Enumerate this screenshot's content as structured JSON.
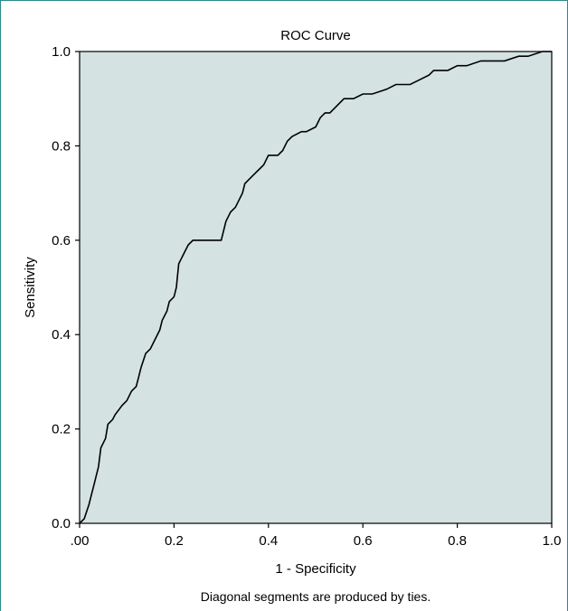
{
  "colors": {
    "plot_background": "#d4e2e2",
    "curve": "#000000",
    "frame": "#2a8a8a"
  },
  "chart_data": {
    "type": "line",
    "title": "ROC Curve",
    "xlabel": "1 - Specificity",
    "ylabel": "Sensitivity",
    "xlim": [
      0,
      1
    ],
    "ylim": [
      0,
      1
    ],
    "x_tick_labels": [
      ".00",
      "0.2",
      "0.4",
      "0.6",
      "0.8",
      "1.0"
    ],
    "y_tick_labels": [
      "0.0",
      "0.2",
      "0.4",
      "0.6",
      "0.8",
      "1.0"
    ],
    "grid": false,
    "legend": null,
    "footnote": "Diagonal segments are produced by ties.",
    "series": [
      {
        "x": [
          0.0,
          0.01,
          0.02,
          0.025,
          0.03,
          0.035,
          0.04,
          0.045,
          0.05,
          0.055,
          0.06,
          0.07,
          0.075,
          0.09,
          0.1,
          0.11,
          0.12,
          0.125,
          0.13,
          0.14,
          0.15,
          0.155,
          0.16,
          0.17,
          0.175,
          0.185,
          0.19,
          0.2,
          0.205,
          0.21,
          0.215,
          0.22,
          0.23,
          0.24,
          0.25,
          0.3,
          0.305,
          0.31,
          0.315,
          0.32,
          0.33,
          0.34,
          0.345,
          0.35,
          0.36,
          0.37,
          0.38,
          0.39,
          0.4,
          0.42,
          0.43,
          0.44,
          0.45,
          0.47,
          0.48,
          0.5,
          0.51,
          0.52,
          0.53,
          0.55,
          0.56,
          0.58,
          0.6,
          0.62,
          0.65,
          0.67,
          0.7,
          0.72,
          0.74,
          0.75,
          0.77,
          0.78,
          0.8,
          0.82,
          0.85,
          0.9,
          0.93,
          0.95,
          0.98,
          1.0
        ],
        "y": [
          0.0,
          0.01,
          0.04,
          0.06,
          0.08,
          0.1,
          0.12,
          0.16,
          0.17,
          0.18,
          0.21,
          0.22,
          0.23,
          0.25,
          0.26,
          0.28,
          0.29,
          0.31,
          0.33,
          0.36,
          0.37,
          0.38,
          0.39,
          0.41,
          0.43,
          0.45,
          0.47,
          0.48,
          0.5,
          0.55,
          0.56,
          0.57,
          0.59,
          0.6,
          0.6,
          0.6,
          0.62,
          0.64,
          0.65,
          0.66,
          0.67,
          0.69,
          0.7,
          0.72,
          0.73,
          0.74,
          0.75,
          0.76,
          0.78,
          0.78,
          0.79,
          0.81,
          0.82,
          0.83,
          0.83,
          0.84,
          0.86,
          0.87,
          0.87,
          0.89,
          0.9,
          0.9,
          0.91,
          0.91,
          0.92,
          0.93,
          0.93,
          0.94,
          0.95,
          0.96,
          0.96,
          0.96,
          0.97,
          0.97,
          0.98,
          0.98,
          0.99,
          0.99,
          1.0,
          1.0
        ]
      }
    ]
  }
}
